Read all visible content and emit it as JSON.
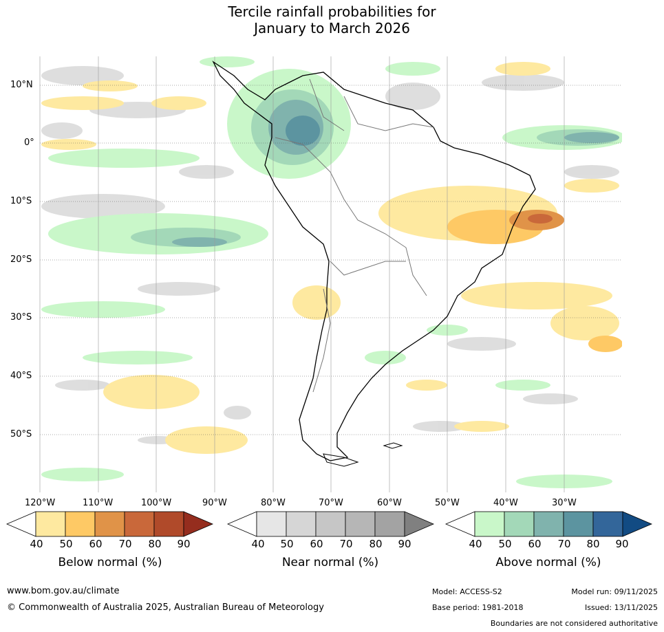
{
  "title": {
    "line1": "Tercile rainfall probabilities for",
    "line2": "January to March 2026"
  },
  "map": {
    "lat_labels": [
      "10°N",
      "0°",
      "10°S",
      "20°S",
      "30°S",
      "40°S",
      "50°S"
    ],
    "lon_labels": [
      "120°W",
      "110°W",
      "100°W",
      "90°W",
      "80°W",
      "70°W",
      "60°W",
      "50°W",
      "40°W",
      "30°W"
    ]
  },
  "colorbars": [
    {
      "label": "Below normal (%)",
      "ticks": [
        "40",
        "50",
        "60",
        "70",
        "80",
        "90"
      ],
      "colors": [
        "#ffffff",
        "#fee9a0",
        "#fec965",
        "#e09348",
        "#c9683a",
        "#b04a2a",
        "#952d1e"
      ]
    },
    {
      "label": "Near normal (%)",
      "ticks": [
        "40",
        "50",
        "60",
        "70",
        "80",
        "90"
      ],
      "colors": [
        "#ffffff",
        "#e6e6e6",
        "#d6d6d6",
        "#c6c6c6",
        "#b6b6b6",
        "#a3a3a3",
        "#808080"
      ]
    },
    {
      "label": "Above normal (%)",
      "ticks": [
        "40",
        "50",
        "60",
        "70",
        "80",
        "90"
      ],
      "colors": [
        "#ffffff",
        "#c9f7c9",
        "#a3d8b8",
        "#80b3ad",
        "#5c94a0",
        "#33669a",
        "#124b83"
      ]
    }
  ],
  "footer": {
    "url": "www.bom.gov.au/climate",
    "copyright": "© Commonwealth of Australia 2025, Australian Bureau of Meteorology",
    "model": "Model: ACCESS-S2",
    "base_period": "Base period: 1981-2018",
    "model_run": "Model run: 09/11/2025",
    "issued": "Issued: 13/11/2025",
    "disclaimer": "Boundaries are not considered authoritative"
  }
}
